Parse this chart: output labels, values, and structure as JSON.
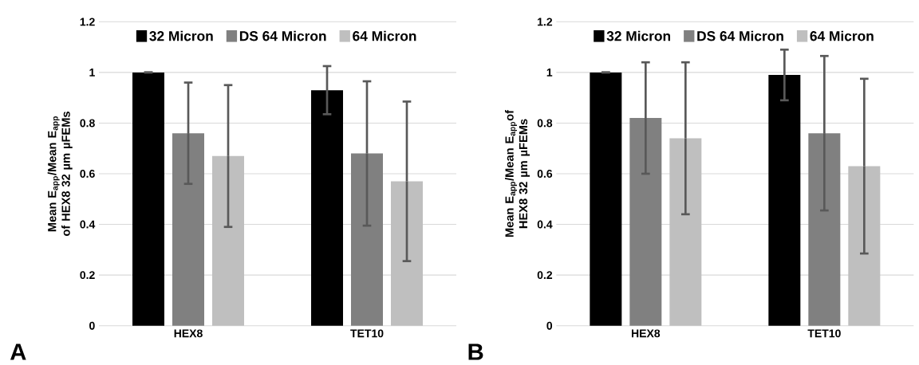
{
  "chart_data": [
    {
      "type": "bar",
      "ylabel": "Mean E$_{app}$/Mean E$_{app}$ of HEX8 32 µm µFEMs",
      "categories": [
        "HEX8",
        "TET10"
      ],
      "series": [
        {
          "name": "32 Micron",
          "color": "#000000",
          "values": [
            1.0,
            0.93
          ],
          "errors": [
            0,
            0.095
          ]
        },
        {
          "name": "DS 64 Micron",
          "color": "#808080",
          "values": [
            0.76,
            0.68
          ],
          "errors": [
            0.2,
            0.285
          ]
        },
        {
          "name": "64 Micron",
          "color": "#bfbfbf",
          "values": [
            0.67,
            0.57
          ],
          "errors": [
            0.28,
            0.315
          ]
        }
      ],
      "ylim": [
        0,
        1.2
      ],
      "yticks": [
        0,
        0.2,
        0.4,
        0.6,
        0.8,
        1,
        1.2
      ],
      "grid": "y",
      "legend": "top",
      "annotations": [
        "A"
      ]
    },
    {
      "type": "bar",
      "ylabel": "Mean E$_{app}$/Mean E$_{app}$of HEX8 32 µm µFEMs",
      "categories": [
        "HEX8",
        "TET10"
      ],
      "series": [
        {
          "name": "32 Micron",
          "color": "#000000",
          "values": [
            1.0,
            0.99
          ],
          "errors": [
            0,
            0.1
          ]
        },
        {
          "name": "DS 64 Micron",
          "color": "#808080",
          "values": [
            0.82,
            0.76
          ],
          "errors": [
            0.22,
            0.305
          ]
        },
        {
          "name": "64 Micron",
          "color": "#bfbfbf",
          "values": [
            0.74,
            0.63
          ],
          "errors": [
            0.3,
            0.345
          ]
        }
      ],
      "ylim": [
        0,
        1.2
      ],
      "yticks": [
        0,
        0.2,
        0.4,
        0.6,
        0.8,
        1,
        1.2
      ],
      "grid": "y",
      "legend": "top",
      "annotations": [
        "B"
      ]
    }
  ]
}
